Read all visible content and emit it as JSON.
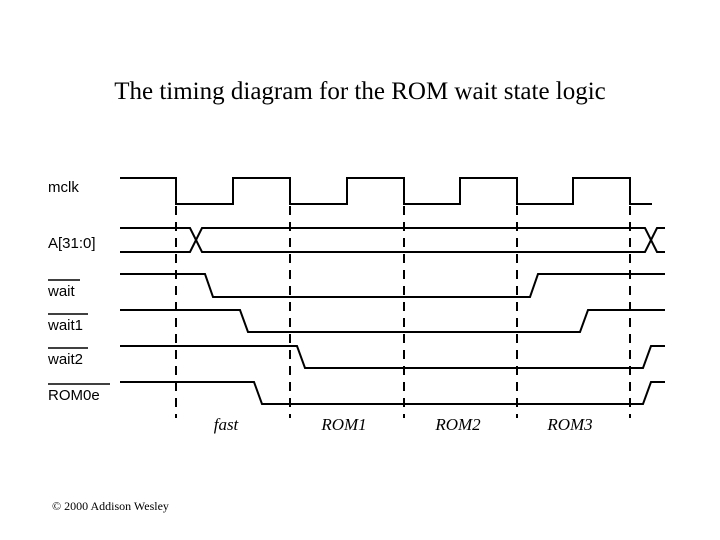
{
  "title": "The timing diagram for the ROM wait state logic",
  "copyright": "© 2000 Addison Wesley",
  "signals": [
    {
      "name": "mclk",
      "active_low": false
    },
    {
      "name": "A[31:0]",
      "active_low": false
    },
    {
      "name": "wait",
      "active_low": true
    },
    {
      "name": "wait1",
      "active_low": true
    },
    {
      "name": "wait2",
      "active_low": true
    },
    {
      "name": "ROM0e",
      "active_low": true
    }
  ],
  "phases": [
    "fast",
    "ROM1",
    "ROM2",
    "ROM3"
  ]
}
